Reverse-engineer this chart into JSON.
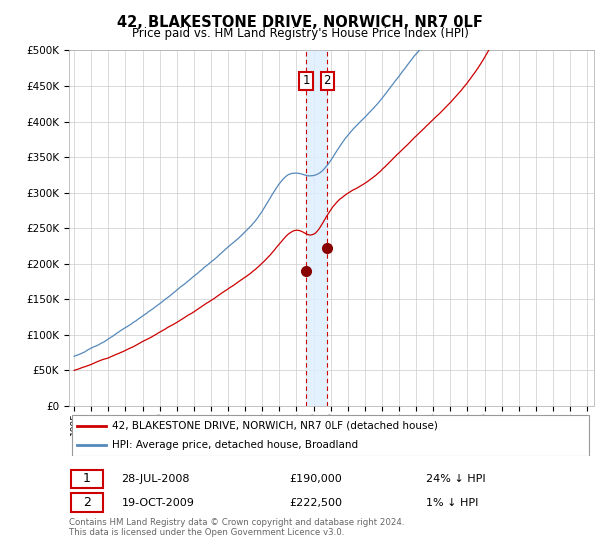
{
  "title": "42, BLAKESTONE DRIVE, NORWICH, NR7 0LF",
  "subtitle": "Price paid vs. HM Land Registry's House Price Index (HPI)",
  "legend_line1": "42, BLAKESTONE DRIVE, NORWICH, NR7 0LF (detached house)",
  "legend_line2": "HPI: Average price, detached house, Broadland",
  "transaction1_date": "28-JUL-2008",
  "transaction1_price": 190000,
  "transaction1_year": 2008.57,
  "transaction1_hpi": "24% ↓ HPI",
  "transaction2_date": "19-OCT-2009",
  "transaction2_price": 222500,
  "transaction2_year": 2009.8,
  "transaction2_hpi": "1% ↓ HPI",
  "footer": "Contains HM Land Registry data © Crown copyright and database right 2024.\nThis data is licensed under the Open Government Licence v3.0.",
  "hpi_color": "#5588bb",
  "price_color": "#cc0000",
  "vline_color": "#cc0000",
  "vband_color": "#ddeeff",
  "marker_color": "#880000",
  "ylim": [
    0,
    500000
  ],
  "yticks": [
    0,
    50000,
    100000,
    150000,
    200000,
    250000,
    300000,
    350000,
    400000,
    450000,
    500000
  ],
  "xstart": 1995,
  "xend": 2025
}
